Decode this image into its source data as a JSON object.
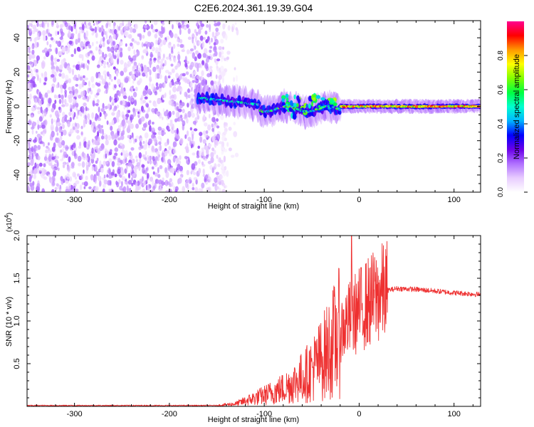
{
  "title": "C2E6.2024.361.19.39.G04",
  "chart_data": [
    {
      "type": "heatmap",
      "xlabel": "Height of straight line (km)",
      "ylabel": "Frequency (Hz)",
      "xlim": [
        -350,
        128
      ],
      "ylim": [
        -50,
        50
      ],
      "x_ticks": [
        -300,
        -200,
        -100,
        0,
        100
      ],
      "y_ticks": [
        -40,
        -20,
        0,
        20,
        40
      ],
      "colorbar": {
        "label": "Normalized spectral amplitude",
        "range": [
          0,
          1
        ],
        "ticks": [
          0.0,
          0.2,
          0.4,
          0.6,
          0.8
        ],
        "colors": [
          "#ffffff",
          "#e8ccff",
          "#b070ff",
          "#6a00e8",
          "#0000ff",
          "#00b4ff",
          "#00ffd0",
          "#00ff40",
          "#80ff00",
          "#ffff00",
          "#ff9900",
          "#ff0000",
          "#ff0090"
        ]
      },
      "regions": [
        {
          "x_range": [
            -350,
            -148
          ],
          "freq_range": [
            -50,
            50
          ],
          "amplitude_range": [
            0.05,
            0.2
          ],
          "description": "noise"
        },
        {
          "x_range": [
            -170,
            -105
          ],
          "center_freq_from": 5,
          "center_freq_to": 1,
          "amplitude_range": [
            0.2,
            0.6
          ]
        },
        {
          "x_range": [
            -105,
            -20
          ],
          "center_freq": 0,
          "amplitude_range": [
            0.2,
            0.7
          ]
        },
        {
          "x_range": [
            -20,
            128
          ],
          "center_freq": 0,
          "amplitude_range": [
            0.6,
            0.95
          ]
        }
      ]
    },
    {
      "type": "line",
      "xlabel": "Height of straight line (km)",
      "ylabel": "SNR (10 * v/v)",
      "y_multiplier": "(x10",
      "y_multiplier_exp": "4",
      "y_multiplier_close": ")",
      "xlim": [
        -350,
        128
      ],
      "ylim": [
        0,
        2.0
      ],
      "x_ticks": [
        -300,
        -200,
        -100,
        0,
        100
      ],
      "y_ticks": [
        0.5,
        1.0,
        1.5,
        2.0
      ],
      "color": "#ee3030",
      "series": [
        {
          "x": [
            -350,
            -300,
            -250,
            -200,
            -170,
            -150,
            -130,
            -115,
            -100,
            -90,
            -80,
            -70,
            -60,
            -50,
            -40,
            -30,
            -20,
            -10,
            0,
            10,
            20,
            30,
            40,
            60,
            80,
            100,
            128
          ],
          "y": [
            0.01,
            0.01,
            0.01,
            0.01,
            0.01,
            0.01,
            0.03,
            0.08,
            0.13,
            0.17,
            0.21,
            0.27,
            0.34,
            0.43,
            0.55,
            0.7,
            0.88,
            1.02,
            1.13,
            1.22,
            1.3,
            1.36,
            1.38,
            1.37,
            1.35,
            1.33,
            1.31
          ]
        }
      ],
      "peaks": [
        {
          "x": -8,
          "y": 2.0
        },
        {
          "x": -13,
          "y": 1.3
        },
        {
          "x": -22,
          "y": 1.1
        }
      ]
    }
  ]
}
